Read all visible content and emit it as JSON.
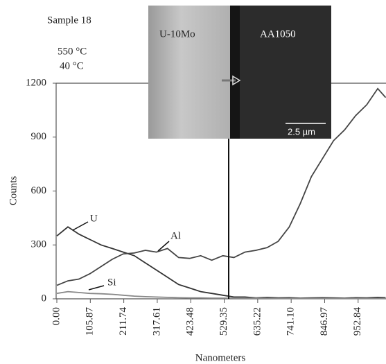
{
  "chart_data": {
    "type": "line",
    "annotations": {
      "sample": "Sample 18",
      "temp1": "550 °C",
      "temp2": "40 °C",
      "inset_left": "U-10Mo",
      "inset_right": "AA1050",
      "scale": "2.5 µm"
    },
    "x_label": "Nanometers",
    "y_label": "Counts",
    "x": [
      0,
      35,
      70,
      105,
      140,
      175,
      210,
      245,
      280,
      315,
      350,
      385,
      420,
      455,
      490,
      525,
      560,
      595,
      630,
      665,
      700,
      735,
      770,
      805,
      840,
      875,
      910,
      945,
      980,
      1015,
      1040
    ],
    "series": [
      {
        "name": "U",
        "color": "#333333",
        "values": [
          350,
          400,
          360,
          330,
          300,
          280,
          260,
          240,
          200,
          160,
          120,
          80,
          60,
          40,
          30,
          20,
          10,
          10,
          5,
          8,
          5,
          6,
          4,
          5,
          6,
          5,
          4,
          6,
          5,
          8,
          6
        ]
      },
      {
        "name": "Al",
        "color": "#444444",
        "values": [
          75,
          100,
          110,
          140,
          180,
          220,
          250,
          255,
          270,
          260,
          280,
          230,
          225,
          240,
          215,
          240,
          230,
          260,
          270,
          285,
          320,
          400,
          530,
          680,
          780,
          880,
          940,
          1020,
          1080,
          1170,
          1120
        ]
      },
      {
        "name": "Si",
        "color": "#888888",
        "values": [
          30,
          40,
          35,
          30,
          28,
          25,
          20,
          15,
          12,
          10,
          8,
          6,
          5,
          5,
          4,
          4,
          3,
          3,
          3,
          3,
          2,
          2,
          2,
          2,
          2,
          2,
          2,
          2,
          2,
          2,
          2
        ]
      }
    ],
    "xlim": [
      0,
      1041
    ],
    "xticks": [
      {
        "value": 0,
        "label": "0.00"
      },
      105.87,
      211.74,
      317.61,
      423.48,
      529.35,
      635.22,
      {
        "value": 741.1,
        "label": "741.10"
      },
      846.97,
      952.84
    ],
    "ylim": [
      0,
      1200
    ],
    "yticks": [
      0,
      300,
      600,
      900,
      1200
    ]
  }
}
